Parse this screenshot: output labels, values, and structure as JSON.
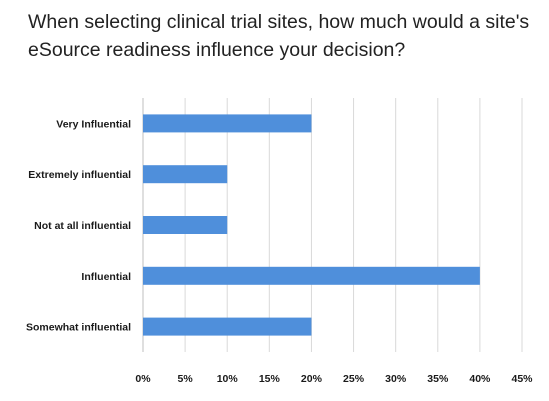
{
  "chart_data": {
    "type": "bar",
    "orientation": "horizontal",
    "title": "When selecting clinical trial sites, how much would a site's eSource readiness influence your decision?",
    "categories": [
      "Very Influential",
      "Extremely influential",
      "Not at all influential",
      "Influential",
      "Somewhat influential"
    ],
    "values": [
      20,
      10,
      10,
      40,
      20
    ],
    "x_ticks": [
      "0%",
      "5%",
      "10%",
      "15%",
      "20%",
      "25%",
      "30%",
      "35%",
      "40%",
      "45%"
    ],
    "xlim": [
      0,
      45
    ],
    "value_unit": "%",
    "grid": true,
    "bar_color": "#4f8fdb"
  }
}
